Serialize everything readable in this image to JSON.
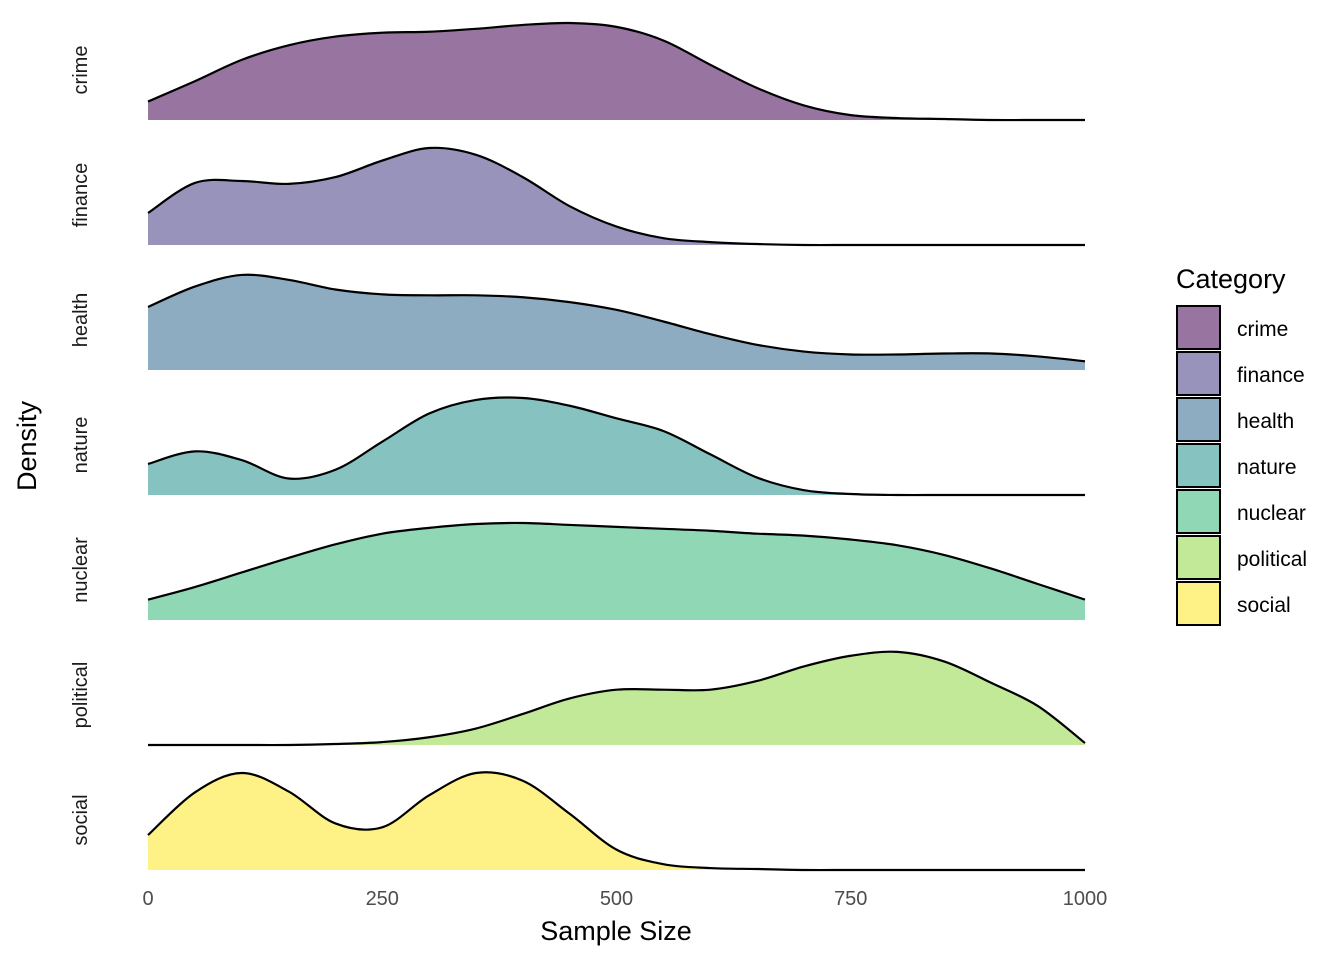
{
  "chart_data": {
    "type": "area",
    "subtype": "ridgeline-density",
    "title": "",
    "xlabel": "Sample Size",
    "ylabel": "Density",
    "xlim": [
      0,
      1000
    ],
    "xticks": [
      0,
      250,
      500,
      750,
      1000
    ],
    "xtick_labels": [
      "0",
      "250",
      "500",
      "750",
      "1000"
    ],
    "grid": false,
    "fill_opacity": 0.55,
    "legend": {
      "title": "Category",
      "position": "right"
    },
    "x": [
      0,
      50,
      100,
      150,
      200,
      250,
      300,
      350,
      400,
      450,
      500,
      550,
      600,
      650,
      700,
      750,
      800,
      850,
      900,
      950,
      1000
    ],
    "series": [
      {
        "name": "crime",
        "color": "#440154",
        "values": [
          0.19,
          0.4,
          0.62,
          0.77,
          0.86,
          0.9,
          0.91,
          0.94,
          0.98,
          1.0,
          0.96,
          0.82,
          0.57,
          0.33,
          0.15,
          0.05,
          0.02,
          0.01,
          0.0,
          0.0,
          0.0
        ]
      },
      {
        "name": "finance",
        "color": "#443A83",
        "values": [
          0.33,
          0.64,
          0.66,
          0.63,
          0.7,
          0.87,
          1.0,
          0.93,
          0.7,
          0.4,
          0.19,
          0.07,
          0.03,
          0.01,
          0.0,
          0.0,
          0.0,
          0.0,
          0.0,
          0.0,
          0.0
        ]
      },
      {
        "name": "health",
        "color": "#31688E",
        "values": [
          0.65,
          0.86,
          0.98,
          0.93,
          0.83,
          0.78,
          0.77,
          0.77,
          0.75,
          0.7,
          0.62,
          0.5,
          0.37,
          0.26,
          0.19,
          0.16,
          0.16,
          0.17,
          0.17,
          0.14,
          0.09
        ]
      },
      {
        "name": "nature",
        "color": "#21908C",
        "values": [
          0.32,
          0.45,
          0.36,
          0.17,
          0.26,
          0.55,
          0.84,
          0.98,
          1.0,
          0.92,
          0.79,
          0.66,
          0.42,
          0.18,
          0.05,
          0.01,
          0.0,
          0.0,
          0.0,
          0.0,
          0.0
        ]
      },
      {
        "name": "nuclear",
        "color": "#35B779",
        "values": [
          0.21,
          0.34,
          0.49,
          0.64,
          0.78,
          0.89,
          0.95,
          0.99,
          1.0,
          0.98,
          0.96,
          0.94,
          0.92,
          0.89,
          0.87,
          0.83,
          0.77,
          0.67,
          0.53,
          0.37,
          0.21
        ]
      },
      {
        "name": "political",
        "color": "#8FD744",
        "values": [
          0.0,
          0.0,
          0.0,
          0.0,
          0.01,
          0.03,
          0.08,
          0.17,
          0.32,
          0.48,
          0.57,
          0.57,
          0.57,
          0.66,
          0.81,
          0.92,
          0.96,
          0.86,
          0.64,
          0.4,
          0.02
        ]
      },
      {
        "name": "social",
        "color": "#FDE725",
        "values": [
          0.36,
          0.8,
          1.0,
          0.81,
          0.48,
          0.44,
          0.77,
          1.0,
          0.92,
          0.58,
          0.21,
          0.06,
          0.02,
          0.01,
          0.0,
          0.0,
          0.0,
          0.0,
          0.0,
          0.0,
          0.0
        ]
      }
    ]
  }
}
